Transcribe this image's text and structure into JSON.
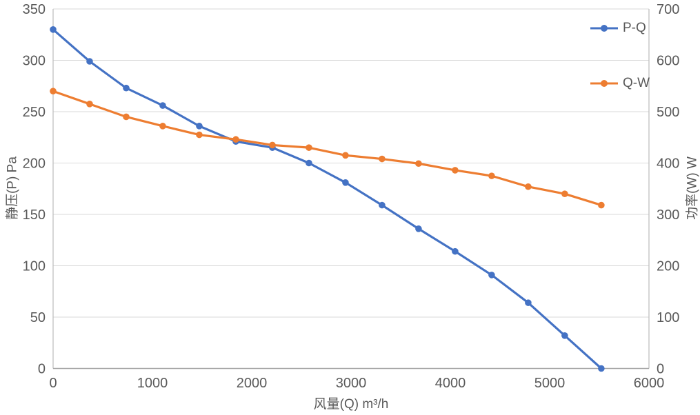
{
  "chart_data": {
    "type": "line",
    "title": "",
    "x": [
      0,
      368,
      736,
      1104,
      1472,
      1840,
      2208,
      2576,
      2944,
      3312,
      3680,
      4048,
      4416,
      4784,
      5152,
      5520
    ],
    "series": [
      {
        "name": "P-Q",
        "yaxis": "left",
        "color": "#4472C4",
        "values": [
          330,
          299,
          273,
          256,
          236,
          221,
          215,
          200,
          181,
          159,
          136,
          114,
          91,
          64,
          32,
          0
        ]
      },
      {
        "name": "Q-W",
        "yaxis": "right",
        "color": "#ED7D31",
        "values": [
          540,
          515,
          490,
          472,
          455,
          446,
          435,
          430,
          415,
          408,
          399,
          386,
          375,
          354,
          340,
          318
        ]
      }
    ],
    "xlabel": "风量(Q)  m³/h",
    "ylabel_left": "静压(P) Pa",
    "ylabel_right": "功率(W) W",
    "xlim": [
      0,
      6000
    ],
    "ylim_left": [
      0,
      350
    ],
    "ylim_right": [
      0,
      700
    ],
    "x_ticks": [
      0,
      1000,
      2000,
      3000,
      4000,
      5000,
      6000
    ],
    "y_ticks_left": [
      0,
      50,
      100,
      150,
      200,
      250,
      300,
      350
    ],
    "y_ticks_right": [
      0,
      100,
      200,
      300,
      400,
      500,
      600,
      700
    ],
    "grid": "horizontal",
    "legend": {
      "position": "inside-top-right",
      "entries": [
        "P-Q",
        "Q-W"
      ]
    }
  },
  "colors": {
    "series_pq": "#4472C4",
    "series_qw": "#ED7D31",
    "text": "#595959",
    "gridline": "#D9D9D9",
    "axis_side": "#C0C0C0",
    "axis_bottom": "#A6A6A6",
    "background": "#FFFFFF"
  }
}
